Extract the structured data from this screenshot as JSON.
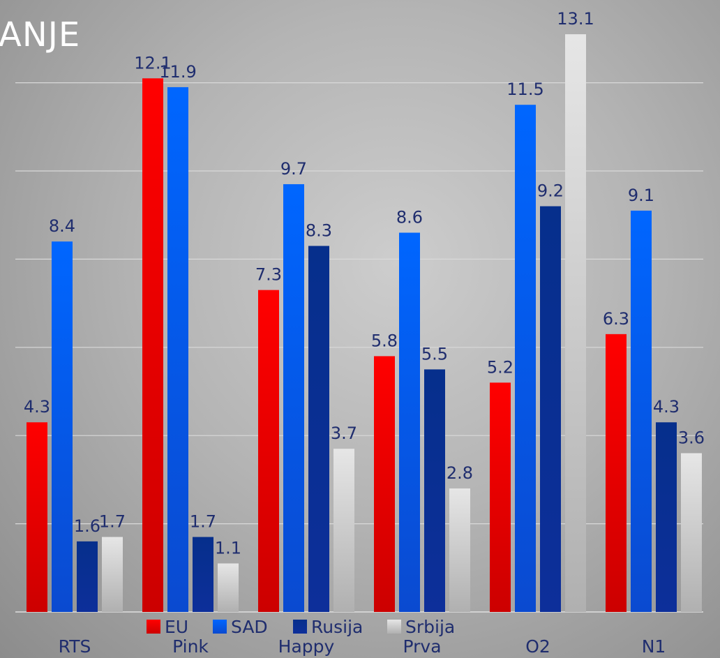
{
  "title": "ANJE",
  "chart_data": {
    "type": "bar",
    "title": "ANJE",
    "categories": [
      "RTS",
      "Pink",
      "Happy",
      "Prva",
      "O2",
      "N1"
    ],
    "series": [
      {
        "name": "EU",
        "color": "#ff0000",
        "values": [
          4.3,
          12.1,
          7.3,
          5.8,
          5.2,
          6.3
        ]
      },
      {
        "name": "SAD",
        "color": "#0066ff",
        "values": [
          8.4,
          11.9,
          9.7,
          8.6,
          11.5,
          9.1
        ]
      },
      {
        "name": "Rusija",
        "color": "#062f8c",
        "values": [
          1.6,
          1.7,
          8.3,
          5.5,
          9.2,
          4.3
        ]
      },
      {
        "name": "Srbija",
        "color": "#d9d9d9",
        "values": [
          1.7,
          1.1,
          3.7,
          2.8,
          13.1,
          3.6
        ]
      }
    ],
    "ylim": [
      0,
      14
    ],
    "grid": true,
    "legend": "bottom",
    "data_labels": true
  }
}
